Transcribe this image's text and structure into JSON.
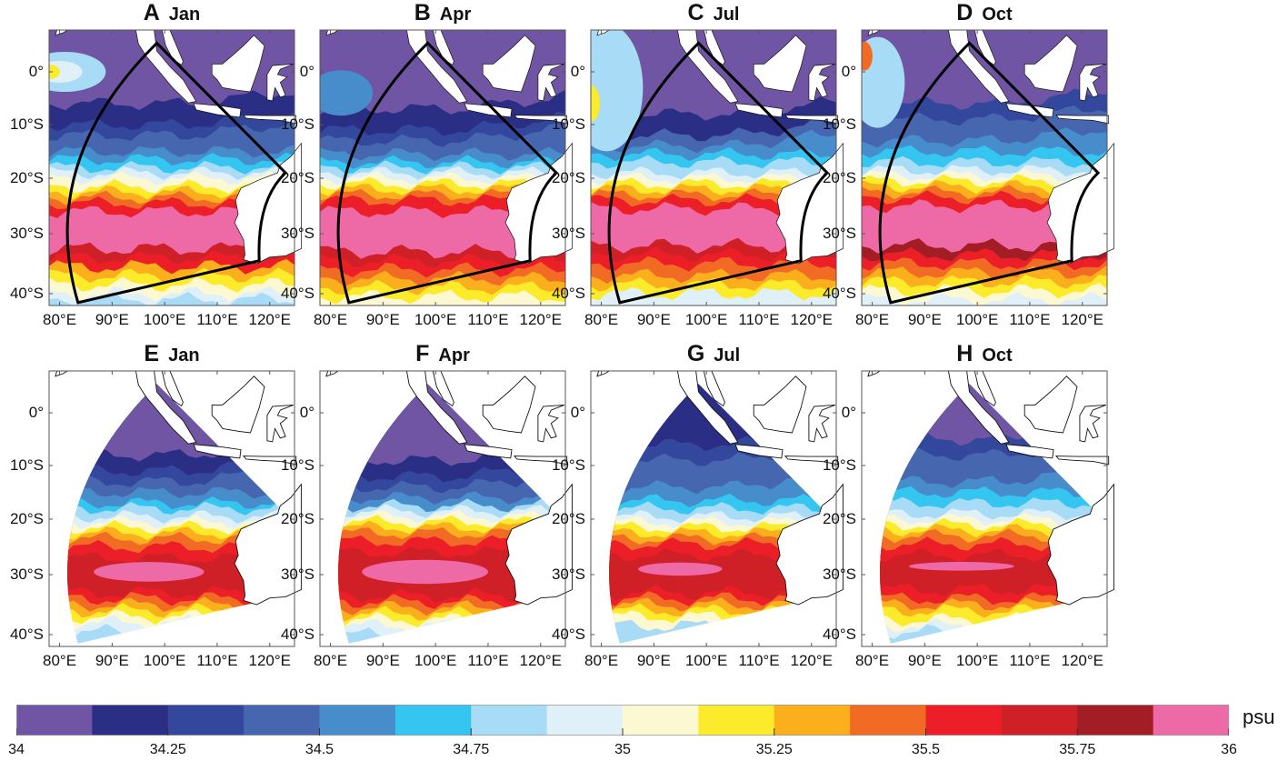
{
  "panels": [
    {
      "letter": "A",
      "month": "Jan",
      "kind": "observation"
    },
    {
      "letter": "B",
      "month": "Apr",
      "kind": "observation"
    },
    {
      "letter": "C",
      "month": "Jul",
      "kind": "observation"
    },
    {
      "letter": "D",
      "month": "Oct",
      "kind": "observation"
    },
    {
      "letter": "E",
      "month": "Jan",
      "kind": "model"
    },
    {
      "letter": "F",
      "month": "Apr",
      "kind": "model"
    },
    {
      "letter": "G",
      "month": "Jul",
      "kind": "model"
    },
    {
      "letter": "H",
      "month": "Oct",
      "kind": "model"
    }
  ],
  "axes": {
    "y_ticks": [
      "0°",
      "10°S",
      "20°S",
      "30°S",
      "40°S"
    ],
    "x_ticks": [
      "80°E",
      "90°E",
      "100°E",
      "110°E",
      "120°E"
    ]
  },
  "colorbar": {
    "unit": "psu",
    "min": 34,
    "max": 36,
    "step": 0.125,
    "tick_labels": [
      "34",
      "34.25",
      "34.5",
      "34.75",
      "35",
      "35.25",
      "35.5",
      "35.75",
      "36"
    ],
    "colors": [
      "#6f55a3",
      "#2b2e85",
      "#33479d",
      "#4766b0",
      "#478ccb",
      "#34c5f0",
      "#a8dbf5",
      "#dff0f8",
      "#fcf8d2",
      "#fbeb2a",
      "#fbaf1d",
      "#f26b24",
      "#ec1e27",
      "#d02027",
      "#a21e24",
      "#ee6aa7"
    ]
  }
}
